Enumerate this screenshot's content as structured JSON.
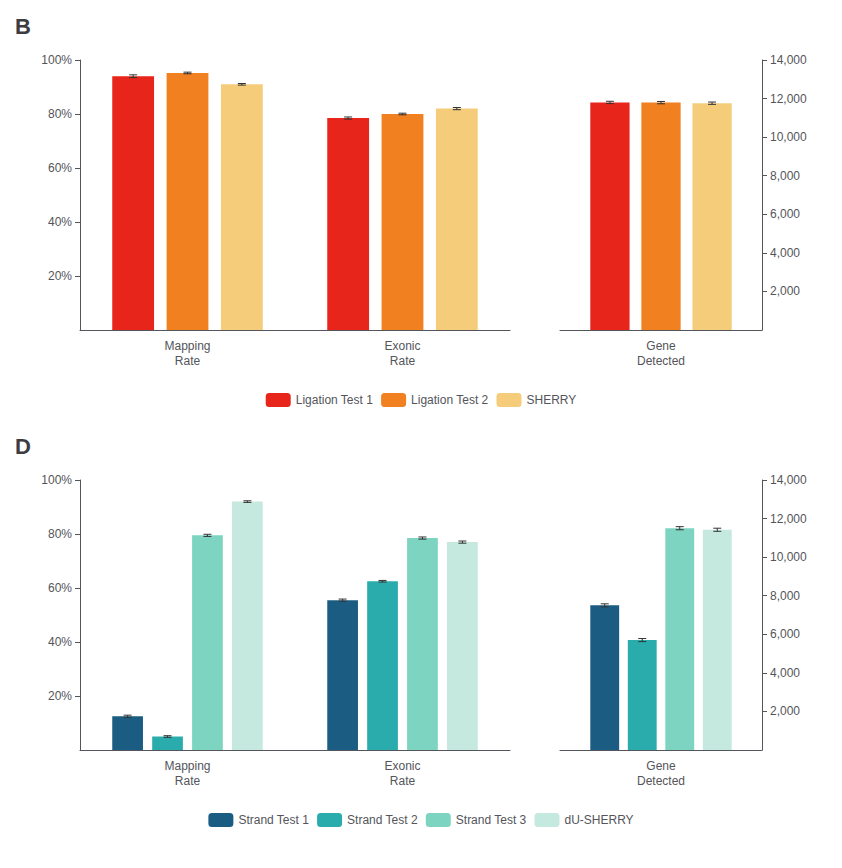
{
  "chart_data": [
    {
      "type": "bar",
      "title": "B",
      "categories": [
        "Mapping\nRate",
        "Exonic\nRate"
      ],
      "series": [
        {
          "name": "Ligation Test 1",
          "color": "#E8251A",
          "values": [
            0.94,
            0.785
          ],
          "errors": [
            0.005,
            0.004
          ]
        },
        {
          "name": "Ligation Test 2",
          "color": "#F08020",
          "values": [
            0.952,
            0.8
          ],
          "errors": [
            0.003,
            0.003
          ]
        },
        {
          "name": "SHERRY",
          "color": "#F5CC7A",
          "values": [
            0.91,
            0.82
          ],
          "errors": [
            0.003,
            0.004
          ]
        }
      ],
      "ylim": [
        0,
        1.0
      ],
      "yticks": [
        {
          "value": 0.2,
          "label": "20%"
        },
        {
          "value": 0.4,
          "label": "40%"
        },
        {
          "value": 0.6,
          "label": "60%"
        },
        {
          "value": 0.8,
          "label": "80%"
        },
        {
          "value": 1.0,
          "label": "100%"
        }
      ],
      "grid": false,
      "legend": "bottom"
    },
    {
      "type": "bar",
      "categories": [
        "Gene\nDetected"
      ],
      "series": [
        {
          "name": "Ligation Test 1",
          "color": "#E8251A",
          "values": [
            11800
          ],
          "errors": [
            60
          ]
        },
        {
          "name": "Ligation Test 2",
          "color": "#F08020",
          "values": [
            11790
          ],
          "errors": [
            60
          ]
        },
        {
          "name": "SHERRY",
          "color": "#F5CC7A",
          "values": [
            11760
          ],
          "errors": [
            60
          ]
        }
      ],
      "ylim": [
        0,
        14000
      ],
      "yticks": [
        {
          "value": 2000,
          "label": "2,000"
        },
        {
          "value": 4000,
          "label": "4,000"
        },
        {
          "value": 6000,
          "label": "6,000"
        },
        {
          "value": 8000,
          "label": "8,000"
        },
        {
          "value": 10000,
          "label": "10,000"
        },
        {
          "value": 12000,
          "label": "12,000"
        },
        {
          "value": 14000,
          "label": "14,000"
        }
      ],
      "grid": false
    },
    {
      "type": "bar",
      "title": "D",
      "categories": [
        "Mapping\nRate",
        "Exonic\nRate"
      ],
      "series": [
        {
          "name": "Strand Test 1",
          "color": "#1B5C82",
          "values": [
            0.125,
            0.555
          ],
          "errors": [
            0.004,
            0.004
          ]
        },
        {
          "name": "Strand Test 2",
          "color": "#2AACAC",
          "values": [
            0.05,
            0.625
          ],
          "errors": [
            0.003,
            0.003
          ]
        },
        {
          "name": "Strand Test 3",
          "color": "#7DD4C0",
          "values": [
            0.795,
            0.785
          ],
          "errors": [
            0.004,
            0.004
          ]
        },
        {
          "name": "dU-SHERRY",
          "color": "#C5E8DF",
          "values": [
            0.92,
            0.77
          ],
          "errors": [
            0.003,
            0.004
          ]
        }
      ],
      "ylim": [
        0,
        1.0
      ],
      "yticks": [
        {
          "value": 0.2,
          "label": "20%"
        },
        {
          "value": 0.4,
          "label": "40%"
        },
        {
          "value": 0.6,
          "label": "60%"
        },
        {
          "value": 0.8,
          "label": "80%"
        },
        {
          "value": 1.0,
          "label": "100%"
        }
      ],
      "grid": false,
      "legend": "bottom"
    },
    {
      "type": "bar",
      "categories": [
        "Gene\nDetected"
      ],
      "series": [
        {
          "name": "Strand Test 1",
          "color": "#1B5C82",
          "values": [
            7500
          ],
          "errors": [
            80
          ]
        },
        {
          "name": "Strand Test 2",
          "color": "#2AACAC",
          "values": [
            5700
          ],
          "errors": [
            80
          ]
        },
        {
          "name": "Strand Test 3",
          "color": "#7DD4C0",
          "values": [
            11500
          ],
          "errors": [
            80
          ]
        },
        {
          "name": "dU-SHERRY",
          "color": "#C5E8DF",
          "values": [
            11420
          ],
          "errors": [
            80
          ]
        }
      ],
      "ylim": [
        0,
        14000
      ],
      "yticks": [
        {
          "value": 2000,
          "label": "2,000"
        },
        {
          "value": 4000,
          "label": "4,000"
        },
        {
          "value": 6000,
          "label": "6,000"
        },
        {
          "value": 8000,
          "label": "8,000"
        },
        {
          "value": 10000,
          "label": "10,000"
        },
        {
          "value": 12000,
          "label": "12,000"
        },
        {
          "value": 14000,
          "label": "14,000"
        }
      ],
      "grid": false
    }
  ]
}
